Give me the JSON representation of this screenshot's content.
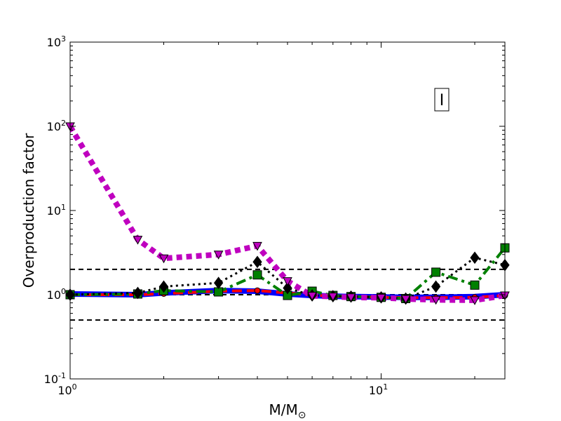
{
  "chart_data": {
    "type": "line",
    "title": "",
    "xlabel": "M/M⊙",
    "ylabel": "Overproduction factor",
    "xscale": "log",
    "yscale": "log",
    "xlim": [
      1,
      25
    ],
    "ylim": [
      0.1,
      1000
    ],
    "x_ticks": [
      {
        "value": 1,
        "base": "10",
        "exp": "0"
      },
      {
        "value": 10,
        "base": "10",
        "exp": "1"
      }
    ],
    "y_ticks": [
      {
        "value": 0.1,
        "base": "10",
        "exp": "-1"
      },
      {
        "value": 1,
        "base": "10",
        "exp": "0"
      },
      {
        "value": 10,
        "base": "10",
        "exp": "1"
      },
      {
        "value": 100,
        "base": "10",
        "exp": "2"
      },
      {
        "value": 1000,
        "base": "10",
        "exp": "3"
      }
    ],
    "panel_label": "I",
    "reference_lines": [
      {
        "y": 2.0,
        "style": "dashed",
        "color": "#000000"
      },
      {
        "y": 1.0,
        "style": "dashed",
        "color": "#000000"
      },
      {
        "y": 0.5,
        "style": "dashed",
        "color": "#000000"
      }
    ],
    "series": [
      {
        "color": "#0000ff",
        "line": "solid",
        "marker": "none",
        "x": [
          1,
          1.65,
          2,
          3,
          4,
          5,
          6,
          7,
          8,
          10,
          12,
          15,
          20,
          25
        ],
        "y": [
          1.02,
          1.0,
          1.05,
          1.12,
          1.1,
          1.02,
          0.98,
          0.96,
          0.95,
          0.94,
          0.93,
          0.93,
          0.95,
          1.0
        ]
      },
      {
        "color": "#ff0000",
        "line": "dashed",
        "marker": "circle",
        "x": [
          1,
          1.65,
          2,
          3,
          4,
          5,
          6,
          7,
          8,
          10,
          12,
          15,
          20,
          25
        ],
        "y": [
          1.0,
          1.0,
          1.03,
          1.1,
          1.12,
          1.05,
          0.99,
          0.96,
          0.95,
          0.93,
          0.92,
          0.92,
          0.93,
          0.98
        ]
      },
      {
        "color": "#008000",
        "line": "dashdot",
        "marker": "square",
        "x": [
          1,
          1.65,
          2,
          3,
          4,
          5,
          6,
          7,
          8,
          10,
          12,
          15,
          20,
          25
        ],
        "y": [
          1.0,
          1.02,
          1.12,
          1.08,
          1.72,
          0.98,
          1.1,
          0.98,
          0.95,
          0.93,
          0.9,
          1.85,
          1.3,
          3.6
        ]
      },
      {
        "color": "#000000",
        "line": "dotted",
        "marker": "diamond",
        "x": [
          1,
          1.65,
          2,
          3,
          4,
          5,
          6,
          7,
          8,
          10,
          12,
          15,
          20,
          25
        ],
        "y": [
          1.0,
          1.05,
          1.25,
          1.38,
          2.45,
          1.2,
          0.98,
          0.96,
          0.95,
          0.93,
          0.9,
          1.25,
          2.75,
          2.25
        ]
      },
      {
        "color": "#bf00bf",
        "line": "dotted",
        "marker": "triangle-down",
        "x": [
          1,
          1.65,
          2,
          3,
          4,
          5,
          6,
          7,
          8,
          10,
          12,
          15,
          20,
          25
        ],
        "y": [
          100,
          4.5,
          2.7,
          3.0,
          3.8,
          1.45,
          0.97,
          0.95,
          0.93,
          0.92,
          0.89,
          0.87,
          0.86,
          0.98
        ]
      }
    ]
  }
}
